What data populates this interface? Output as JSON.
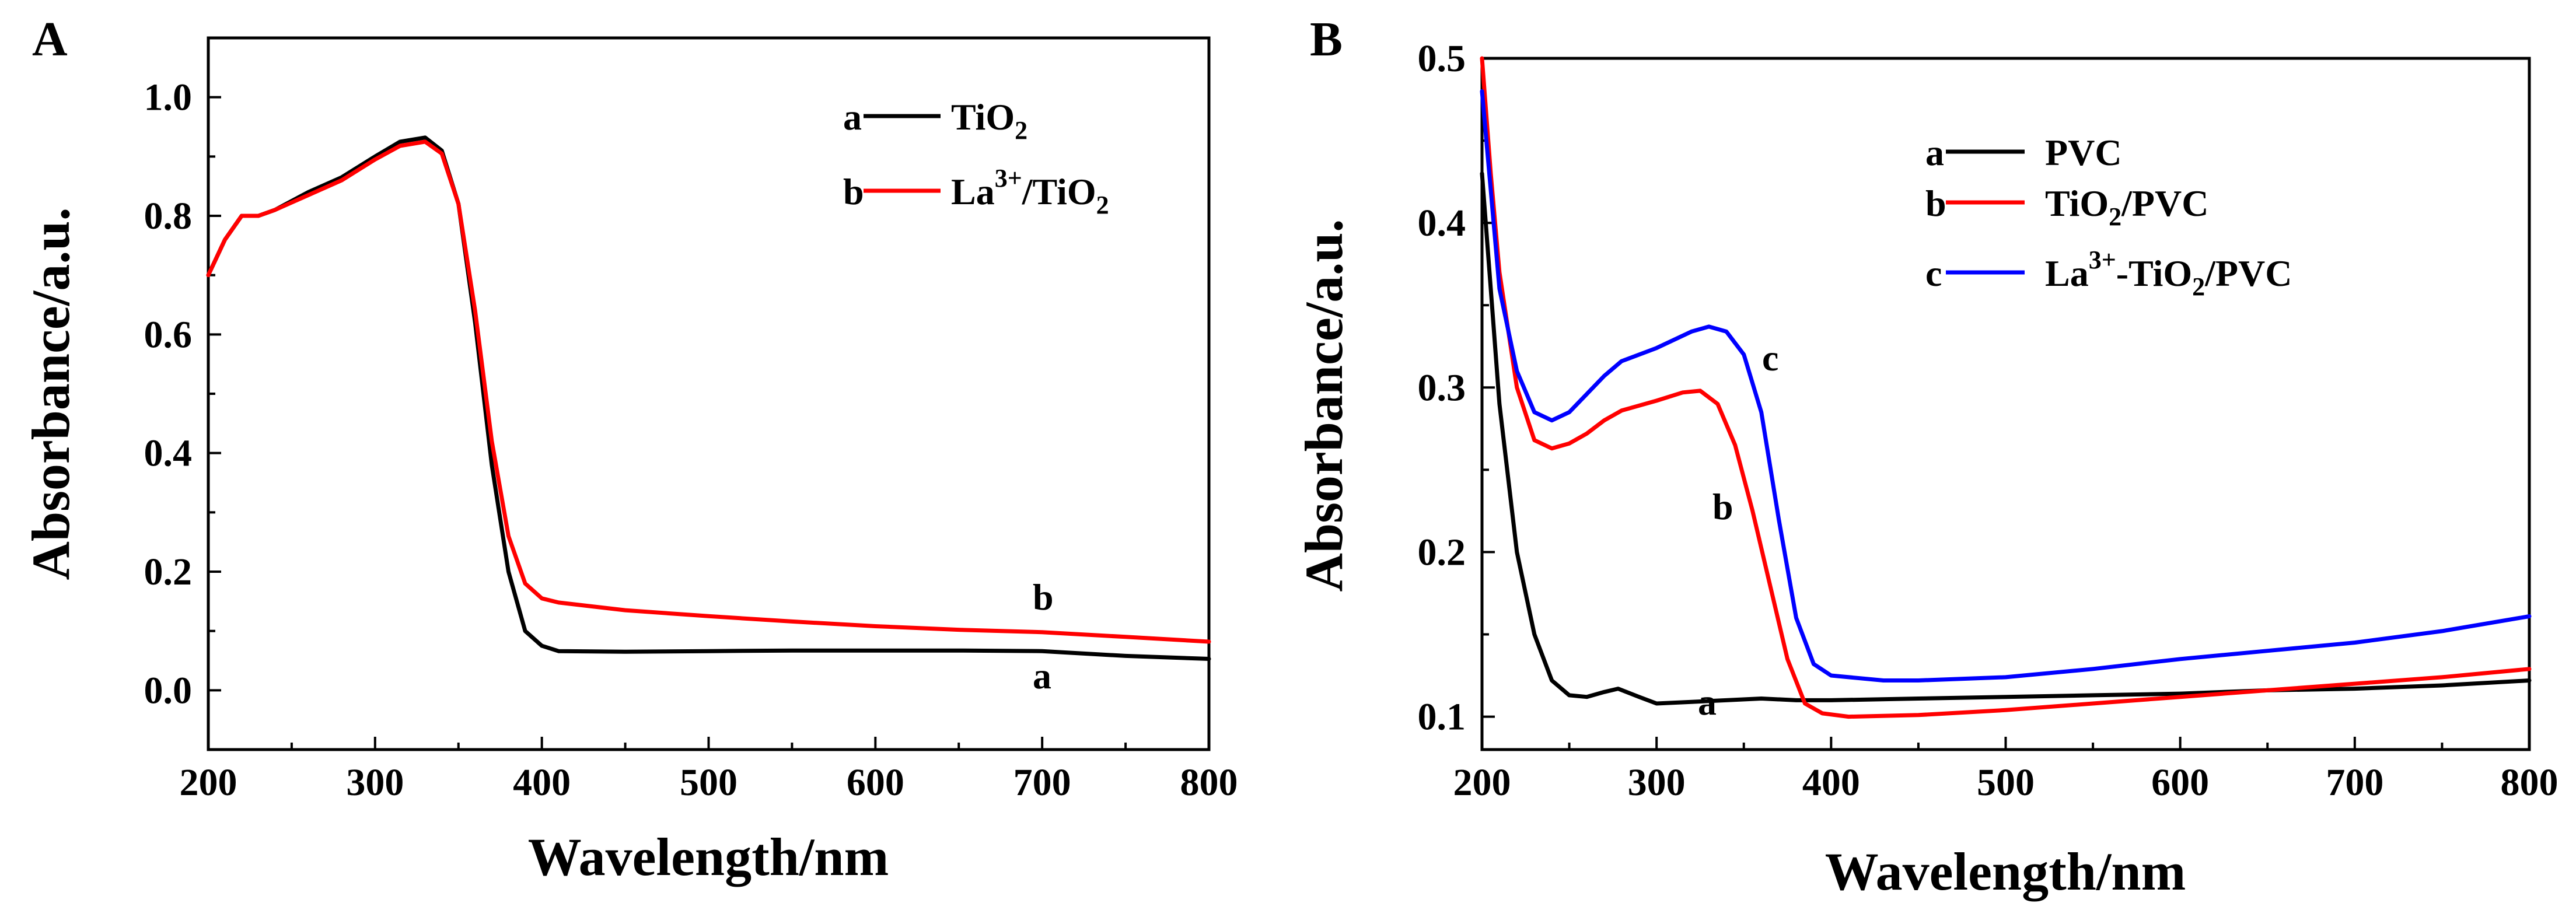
{
  "chart_data": [
    {
      "panel": "A",
      "type": "line",
      "xlabel": "Wavelength/nm",
      "ylabel": "Absorbance/a.u.",
      "xlim": [
        200,
        800
      ],
      "ylim": [
        -0.1,
        1.1
      ],
      "xticks": [
        "200",
        "300",
        "400",
        "500",
        "600",
        "700",
        "800"
      ],
      "yticks": [
        "0.0",
        "0.2",
        "0.4",
        "0.6",
        "0.8",
        "1.0"
      ],
      "legend_position": "top-right",
      "series": [
        {
          "key": "a",
          "name": "TiO",
          "sub": "2",
          "color": "#000000",
          "label_text": "a",
          "points": [
            [
              200,
              0.7
            ],
            [
              210,
              0.76
            ],
            [
              220,
              0.8
            ],
            [
              230,
              0.8
            ],
            [
              240,
              0.81
            ],
            [
              260,
              0.84
            ],
            [
              280,
              0.865
            ],
            [
              300,
              0.9
            ],
            [
              315,
              0.925
            ],
            [
              330,
              0.932
            ],
            [
              340,
              0.91
            ],
            [
              350,
              0.82
            ],
            [
              360,
              0.62
            ],
            [
              370,
              0.38
            ],
            [
              380,
              0.2
            ],
            [
              390,
              0.1
            ],
            [
              400,
              0.075
            ],
            [
              410,
              0.066
            ],
            [
              450,
              0.065
            ],
            [
              500,
              0.066
            ],
            [
              550,
              0.067
            ],
            [
              600,
              0.067
            ],
            [
              650,
              0.067
            ],
            [
              700,
              0.066
            ],
            [
              750,
              0.058
            ],
            [
              800,
              0.053
            ]
          ]
        },
        {
          "key": "b",
          "name": "La",
          "sup": "3+",
          "name2": "/TiO",
          "sub": "2",
          "color": "#ff0000",
          "label_text": "b",
          "points": [
            [
              200,
              0.7
            ],
            [
              210,
              0.76
            ],
            [
              220,
              0.8
            ],
            [
              230,
              0.8
            ],
            [
              240,
              0.81
            ],
            [
              260,
              0.835
            ],
            [
              280,
              0.86
            ],
            [
              300,
              0.895
            ],
            [
              315,
              0.918
            ],
            [
              330,
              0.925
            ],
            [
              340,
              0.905
            ],
            [
              350,
              0.82
            ],
            [
              360,
              0.64
            ],
            [
              370,
              0.42
            ],
            [
              380,
              0.26
            ],
            [
              390,
              0.18
            ],
            [
              400,
              0.155
            ],
            [
              410,
              0.148
            ],
            [
              450,
              0.135
            ],
            [
              500,
              0.125
            ],
            [
              550,
              0.116
            ],
            [
              600,
              0.108
            ],
            [
              650,
              0.102
            ],
            [
              700,
              0.098
            ],
            [
              750,
              0.09
            ],
            [
              800,
              0.082
            ]
          ]
        }
      ]
    },
    {
      "panel": "B",
      "type": "line",
      "xlabel": "Wavelength/nm",
      "ylabel": "Absorbance/a.u.",
      "xlim": [
        200,
        800
      ],
      "ylim": [
        0.08,
        0.5
      ],
      "xticks": [
        "200",
        "300",
        "400",
        "500",
        "600",
        "700",
        "800"
      ],
      "yticks": [
        "0.1",
        "0.2",
        "0.3",
        "0.4",
        "0.5"
      ],
      "legend_position": "top-right",
      "series": [
        {
          "key": "a",
          "name": "PVC",
          "color": "#000000",
          "label_text": "a",
          "points": [
            [
              200,
              0.43
            ],
            [
              205,
              0.36
            ],
            [
              210,
              0.29
            ],
            [
              220,
              0.2
            ],
            [
              230,
              0.15
            ],
            [
              240,
              0.122
            ],
            [
              250,
              0.113
            ],
            [
              260,
              0.112
            ],
            [
              270,
              0.115
            ],
            [
              278,
              0.117
            ],
            [
              290,
              0.112
            ],
            [
              300,
              0.108
            ],
            [
              320,
              0.109
            ],
            [
              340,
              0.11
            ],
            [
              360,
              0.111
            ],
            [
              380,
              0.11
            ],
            [
              400,
              0.11
            ],
            [
              450,
              0.111
            ],
            [
              500,
              0.112
            ],
            [
              550,
              0.113
            ],
            [
              600,
              0.114
            ],
            [
              650,
              0.116
            ],
            [
              700,
              0.117
            ],
            [
              750,
              0.119
            ],
            [
              800,
              0.122
            ]
          ]
        },
        {
          "key": "b",
          "name": "TiO",
          "sub": "2",
          "name2": "/PVC",
          "color": "#ff0000",
          "label_text": "b",
          "points": [
            [
              200,
              0.5
            ],
            [
              205,
              0.43
            ],
            [
              210,
              0.37
            ],
            [
              220,
              0.3
            ],
            [
              230,
              0.268
            ],
            [
              240,
              0.263
            ],
            [
              250,
              0.266
            ],
            [
              260,
              0.272
            ],
            [
              270,
              0.28
            ],
            [
              280,
              0.286
            ],
            [
              300,
              0.292
            ],
            [
              315,
              0.297
            ],
            [
              325,
              0.298
            ],
            [
              335,
              0.29
            ],
            [
              345,
              0.265
            ],
            [
              355,
              0.225
            ],
            [
              365,
              0.18
            ],
            [
              375,
              0.135
            ],
            [
              385,
              0.108
            ],
            [
              395,
              0.102
            ],
            [
              410,
              0.1
            ],
            [
              450,
              0.101
            ],
            [
              500,
              0.104
            ],
            [
              550,
              0.108
            ],
            [
              600,
              0.112
            ],
            [
              650,
              0.116
            ],
            [
              700,
              0.12
            ],
            [
              750,
              0.124
            ],
            [
              800,
              0.129
            ]
          ]
        },
        {
          "key": "c",
          "name": "La",
          "sup": "3+",
          "name2": "-TiO",
          "sub2": "2",
          "name3": "/PVC",
          "color": "#0000ff",
          "label_text": "c",
          "points": [
            [
              200,
              0.48
            ],
            [
              205,
              0.42
            ],
            [
              210,
              0.36
            ],
            [
              220,
              0.31
            ],
            [
              230,
              0.285
            ],
            [
              240,
              0.28
            ],
            [
              250,
              0.285
            ],
            [
              260,
              0.296
            ],
            [
              270,
              0.307
            ],
            [
              280,
              0.316
            ],
            [
              300,
              0.324
            ],
            [
              320,
              0.334
            ],
            [
              330,
              0.337
            ],
            [
              340,
              0.334
            ],
            [
              350,
              0.32
            ],
            [
              360,
              0.285
            ],
            [
              370,
              0.22
            ],
            [
              380,
              0.16
            ],
            [
              390,
              0.132
            ],
            [
              400,
              0.125
            ],
            [
              430,
              0.122
            ],
            [
              450,
              0.122
            ],
            [
              500,
              0.124
            ],
            [
              550,
              0.129
            ],
            [
              600,
              0.135
            ],
            [
              650,
              0.14
            ],
            [
              700,
              0.145
            ],
            [
              750,
              0.152
            ],
            [
              800,
              0.161
            ]
          ]
        }
      ]
    }
  ]
}
